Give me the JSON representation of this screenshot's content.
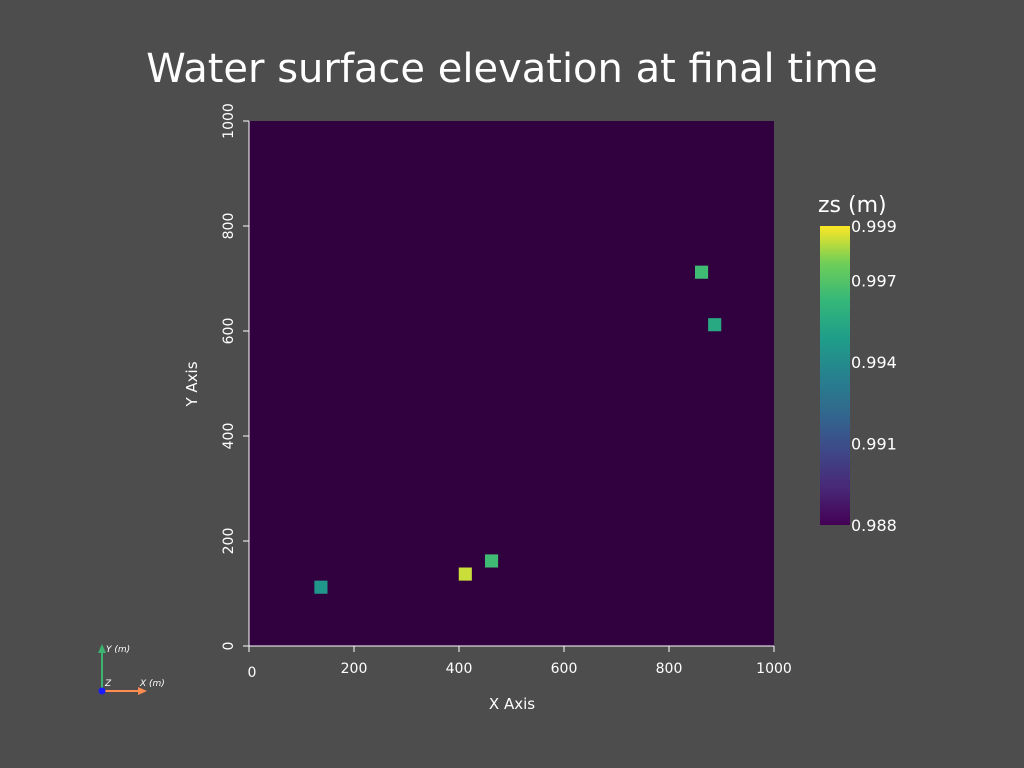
{
  "chart_data": {
    "type": "heatmap",
    "title": "Water surface elevation at final time",
    "xlabel": "X Axis",
    "ylabel": "Y Axis",
    "xlim": [
      0,
      1000
    ],
    "ylim": [
      0,
      1000
    ],
    "xticks": [
      0,
      200,
      400,
      600,
      800,
      1000
    ],
    "yticks": [
      0,
      200,
      400,
      600,
      800,
      1000
    ],
    "background_value": 0.988,
    "cell_size": 25,
    "cells": [
      {
        "x": 137,
        "y": 112,
        "value": 0.9945
      },
      {
        "x": 412,
        "y": 137,
        "value": 0.9985
      },
      {
        "x": 462,
        "y": 162,
        "value": 0.9965
      },
      {
        "x": 862,
        "y": 712,
        "value": 0.9965
      },
      {
        "x": 887,
        "y": 612,
        "value": 0.9955
      }
    ],
    "colorbar": {
      "title": "zs (m)",
      "min": 0.988,
      "max": 0.999,
      "ticks": [
        "0.999",
        "0.997",
        "0.994",
        "0.991",
        "0.988"
      ],
      "tick_values": [
        0.999,
        0.997,
        0.994,
        0.991,
        0.988
      ],
      "colormap": "viridis"
    },
    "orientation_widget": {
      "x_label": "X (m)",
      "y_label": "Y (m)",
      "z_label": "Z"
    }
  },
  "colors": {
    "background": "#4d4d4d",
    "x_axis_arrow": "#ff8c50",
    "y_axis_arrow": "#3cb371",
    "z_axis_dot": "#1a1aff"
  }
}
